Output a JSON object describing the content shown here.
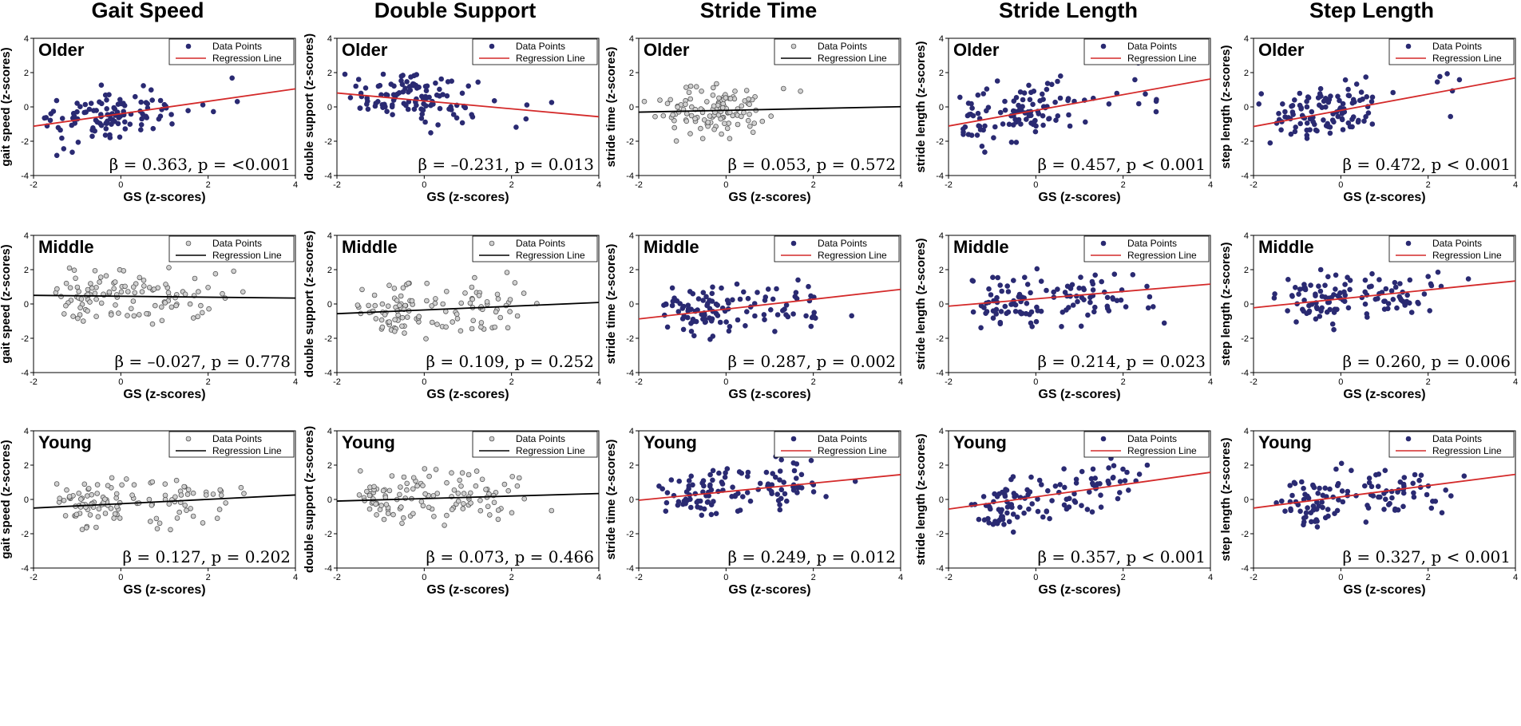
{
  "chart_data": {
    "type": "scatter",
    "colors": {
      "dark_point": "#2a2a72",
      "light_point": "#d0d0d0",
      "red_line": "#d42a2a",
      "black_line": "#000000"
    },
    "legend": {
      "points": "Data Points",
      "line": "Regression Line"
    },
    "x_label": "GS (z-scores)",
    "x_range": [
      -2,
      4
    ],
    "y_range": [
      -4,
      4
    ],
    "x_ticks": [
      "-2",
      "0",
      "2",
      "4"
    ],
    "y_ticks": [
      "-4",
      "-2",
      "0",
      "2",
      "4"
    ],
    "columns": [
      {
        "title": "Gait Speed",
        "y_label": "gait speed (z-scores)"
      },
      {
        "title": "Double Support",
        "y_label": "double support (z-scores)"
      },
      {
        "title": "Stride Time",
        "y_label": "stride time (z-scores)"
      },
      {
        "title": "Stride Length",
        "y_label": "stride length (z-scores)"
      },
      {
        "title": "Step Length",
        "y_label": "step length (z-scores)"
      }
    ],
    "rows": [
      {
        "group": "Older",
        "panels": [
          {
            "stat": "β = 0.363, p = <0.001",
            "beta": 0.363,
            "intercept": -0.4,
            "style": "dark"
          },
          {
            "stat": "β = –0.231, p = 0.013",
            "beta": -0.231,
            "intercept": 0.35,
            "style": "dark"
          },
          {
            "stat": "β = 0.053, p = 0.572",
            "beta": 0.053,
            "intercept": -0.2,
            "style": "light"
          },
          {
            "stat": "β = 0.457, p < 0.001",
            "beta": 0.457,
            "intercept": -0.2,
            "style": "dark"
          },
          {
            "stat": "β = 0.472, p < 0.001",
            "beta": 0.472,
            "intercept": -0.2,
            "style": "dark"
          }
        ]
      },
      {
        "group": "Middle",
        "panels": [
          {
            "stat": "β = –0.027, p = 0.778",
            "beta": -0.027,
            "intercept": 0.45,
            "style": "light"
          },
          {
            "stat": "β = 0.109, p = 0.252",
            "beta": 0.109,
            "intercept": -0.35,
            "style": "light"
          },
          {
            "stat": "β = 0.287, p = 0.002",
            "beta": 0.287,
            "intercept": -0.3,
            "style": "dark"
          },
          {
            "stat": "β = 0.214, p = 0.023",
            "beta": 0.214,
            "intercept": 0.3,
            "style": "dark"
          },
          {
            "stat": "β = 0.260, p = 0.006",
            "beta": 0.26,
            "intercept": 0.3,
            "style": "dark"
          }
        ]
      },
      {
        "group": "Young",
        "panels": [
          {
            "stat": "β = 0.127, p = 0.202",
            "beta": 0.127,
            "intercept": -0.25,
            "style": "light"
          },
          {
            "stat": "β = 0.073, p = 0.466",
            "beta": 0.073,
            "intercept": 0.05,
            "style": "light"
          },
          {
            "stat": "β = 0.249, p = 0.012",
            "beta": 0.249,
            "intercept": 0.45,
            "style": "dark"
          },
          {
            "stat": "β = 0.357, p < 0.001",
            "beta": 0.357,
            "intercept": 0.15,
            "style": "dark"
          },
          {
            "stat": "β = 0.327, p < 0.001",
            "beta": 0.327,
            "intercept": 0.15,
            "style": "dark"
          }
        ]
      }
    ]
  }
}
